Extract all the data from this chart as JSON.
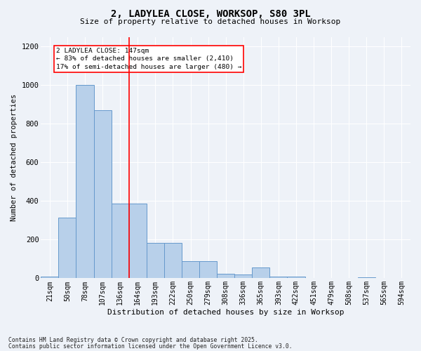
{
  "title_line1": "2, LADYLEA CLOSE, WORKSOP, S80 3PL",
  "title_line2": "Size of property relative to detached houses in Worksop",
  "xlabel": "Distribution of detached houses by size in Worksop",
  "ylabel": "Number of detached properties",
  "categories": [
    "21sqm",
    "50sqm",
    "78sqm",
    "107sqm",
    "136sqm",
    "164sqm",
    "193sqm",
    "222sqm",
    "250sqm",
    "279sqm",
    "308sqm",
    "336sqm",
    "365sqm",
    "393sqm",
    "422sqm",
    "451sqm",
    "479sqm",
    "508sqm",
    "537sqm",
    "565sqm",
    "594sqm"
  ],
  "values": [
    10,
    315,
    1000,
    870,
    385,
    385,
    185,
    185,
    90,
    90,
    25,
    20,
    55,
    10,
    8,
    2,
    2,
    2,
    5,
    2,
    0
  ],
  "bar_color": "#b8d0ea",
  "bar_edge_color": "#6699cc",
  "vline_color": "red",
  "vline_pos": 4.5,
  "annotation_text": "2 LADYLEA CLOSE: 147sqm\n← 83% of detached houses are smaller (2,410)\n17% of semi-detached houses are larger (480) →",
  "ylim": [
    0,
    1250
  ],
  "yticks": [
    0,
    200,
    400,
    600,
    800,
    1000,
    1200
  ],
  "footnote1": "Contains HM Land Registry data © Crown copyright and database right 2025.",
  "footnote2": "Contains public sector information licensed under the Open Government Licence v3.0.",
  "background_color": "#eef2f8"
}
